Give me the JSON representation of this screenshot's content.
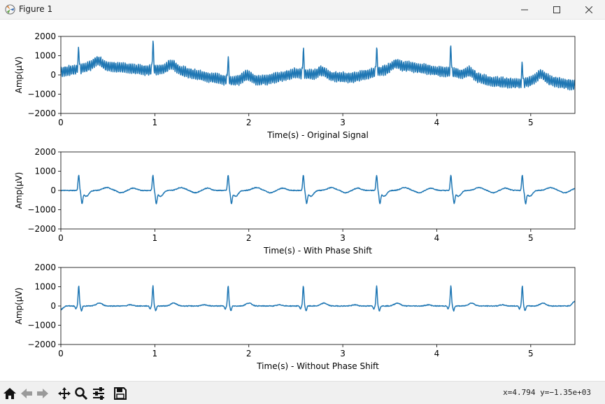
{
  "window": {
    "title": "Figure 1",
    "controls": [
      "minimize-icon",
      "maximize-icon",
      "close-icon"
    ]
  },
  "toolbar": {
    "buttons": [
      "home-icon",
      "back-icon",
      "forward-icon",
      "pan-icon",
      "zoom-icon",
      "configure-subplots-icon",
      "save-icon"
    ],
    "coords": "x=4.794 y=−1.35e+03"
  },
  "chart_data": [
    {
      "type": "line",
      "xlabel": "Time(s) - Original Signal",
      "ylabel": "Amp(μV)",
      "xlim": [
        0,
        5.47
      ],
      "ylim": [
        -2000,
        2000
      ],
      "xticks": [
        0,
        1,
        2,
        3,
        4,
        5
      ],
      "yticks": [
        -2000,
        -1000,
        0,
        1000,
        2000
      ],
      "color": "#1f77b4",
      "beat_times": [
        0.19,
        0.98,
        1.78,
        2.58,
        3.36,
        4.15,
        4.91
      ],
      "r_peaks": [
        1350,
        1700,
        900,
        1300,
        1350,
        1500,
        600
      ],
      "baseline": {
        "x": [
          0,
          0.4,
          0.9,
          1.2,
          1.5,
          1.8,
          2.2,
          2.5,
          2.8,
          3.1,
          3.4,
          3.7,
          4.0,
          4.2,
          4.6,
          4.9,
          5.1,
          5.47
        ],
        "y": [
          150,
          500,
          250,
          300,
          -50,
          -300,
          -250,
          100,
          -50,
          -150,
          200,
          450,
          200,
          100,
          -350,
          -450,
          -200,
          -550
        ]
      },
      "noise_amplitude": 250
    },
    {
      "type": "line",
      "xlabel": "Time(s) - With Phase Shift",
      "ylabel": "Amp(μV)",
      "xlim": [
        0,
        5.47
      ],
      "ylim": [
        -2000,
        2000
      ],
      "xticks": [
        0,
        1,
        2,
        3,
        4,
        5
      ],
      "yticks": [
        -2000,
        -1000,
        0,
        1000,
        2000
      ],
      "color": "#1f77b4",
      "beat_times": [
        0.19,
        0.98,
        1.78,
        2.58,
        3.36,
        4.15,
        4.91
      ],
      "r_peak": 800,
      "s_trough": -600,
      "t_wave": 150
    },
    {
      "type": "line",
      "xlabel": "Time(s) - Without Phase Shift",
      "ylabel": "Amp(μV)",
      "xlim": [
        0,
        5.47
      ],
      "ylim": [
        -2000,
        2000
      ],
      "xticks": [
        0,
        1,
        2,
        3,
        4,
        5
      ],
      "yticks": [
        -2000,
        -1000,
        0,
        1000,
        2000
      ],
      "color": "#1f77b4",
      "beat_times": [
        0.19,
        0.98,
        1.78,
        2.58,
        3.36,
        4.15,
        4.91
      ],
      "r_peak": 1050,
      "s_trough": -250,
      "t_wave": 150
    }
  ]
}
